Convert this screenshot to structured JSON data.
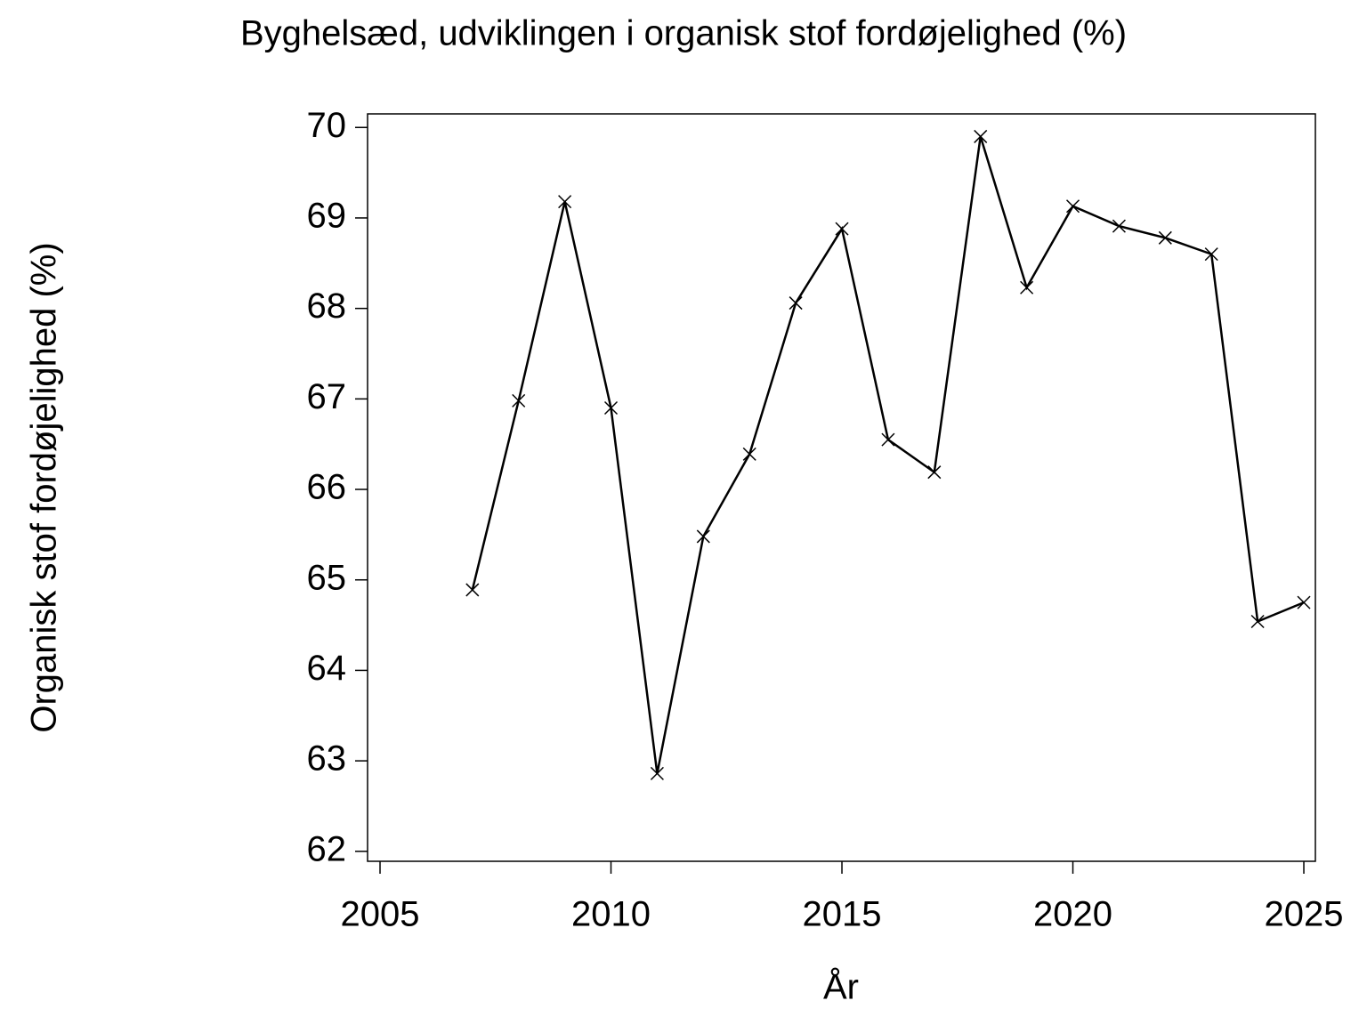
{
  "chart_data": {
    "type": "line",
    "title": "Byghelsæd, udviklingen i organisk stof fordøjelighed (%)",
    "x_label": "År",
    "y_label": "Organisk stof fordøjelighed (%)",
    "x": [
      2007,
      2008,
      2009,
      2010,
      2011,
      2012,
      2013,
      2014,
      2015,
      2016,
      2017,
      2018,
      2019,
      2020,
      2021,
      2022,
      2023,
      2024,
      2025
    ],
    "series": [
      {
        "color": "#000000",
        "values": [
          64.89,
          66.98,
          69.18,
          66.9,
          62.86,
          65.48,
          66.39,
          68.06,
          68.88,
          66.55,
          66.19,
          69.9,
          68.23,
          69.13,
          68.91,
          68.78,
          68.6,
          64.54,
          64.75
        ]
      }
    ],
    "xlim": [
      2004.73,
      2025.25
    ],
    "xticks": [
      2005,
      2010,
      2015,
      2020,
      2025
    ],
    "ylim": [
      61.89,
      70.15
    ],
    "yticks": [
      62,
      63,
      64,
      65,
      66,
      67,
      68,
      69,
      70
    ],
    "marker": "x",
    "grid": false
  }
}
